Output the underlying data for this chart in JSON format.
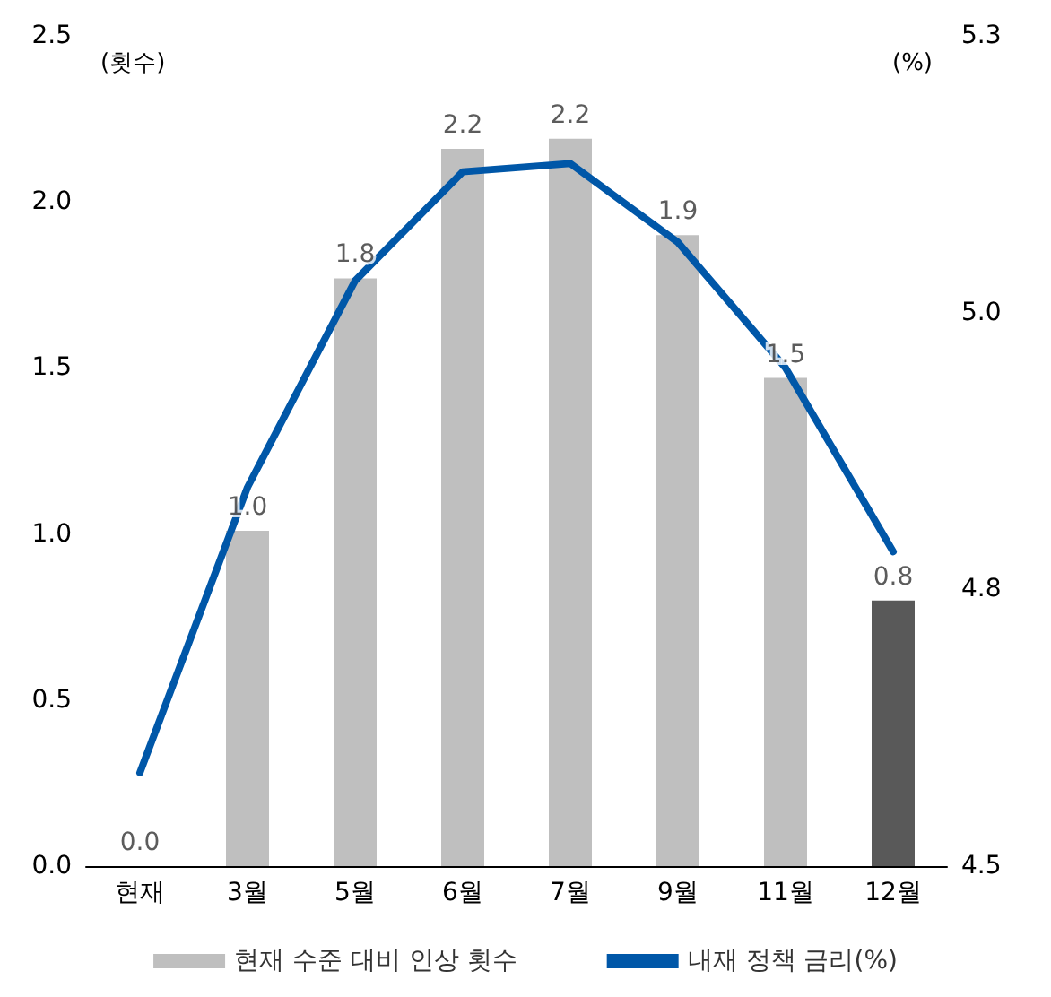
{
  "chart_data": {
    "type": "bar",
    "categories": [
      "현재",
      "3월",
      "5월",
      "6월",
      "7월",
      "9월",
      "11월",
      "12월"
    ],
    "ylabel": "(횟수)",
    "y2label": "(%)",
    "series": [
      {
        "name": "현재 수준 대비 인상 횟수",
        "color": "#bfbfbf",
        "colors": [
          "#bfbfbf",
          "#bfbfbf",
          "#bfbfbf",
          "#bfbfbf",
          "#bfbfbf",
          "#bfbfbf",
          "#bfbfbf",
          "#595959"
        ],
        "values": [
          0,
          1.01,
          1.77,
          2.16,
          2.19,
          1.9,
          1.47,
          0.8
        ],
        "value_labels": [
          "0.0",
          "1.0",
          "1.8",
          "2.2",
          "2.2",
          "1.9",
          "1.5",
          "0.8"
        ]
      },
      {
        "name": "내재 정책 금리(%)",
        "type": "line",
        "axis": "y2",
        "color": "#0057a8",
        "values": [
          4.59,
          4.865,
          5.064,
          5.169,
          5.177,
          5.101,
          4.98,
          4.803
        ]
      }
    ],
    "ylim": [
      0,
      2.5
    ],
    "yticks": [
      {
        "value": 0,
        "label": "0.0"
      },
      0.5,
      {
        "value": 1,
        "label": "1.0"
      },
      1.5,
      {
        "value": 2,
        "label": "2.0"
      },
      2.5
    ],
    "y2lim": [
      4.5,
      5.3
    ],
    "y2ticks": [
      4.5,
      {
        "value": 4.7667,
        "label": "4.8"
      },
      {
        "value": 5.0333,
        "label": "5.0"
      },
      5.3
    ],
    "grid": false,
    "legend": "bottom",
    "marker": "none",
    "line_style": "solid"
  }
}
